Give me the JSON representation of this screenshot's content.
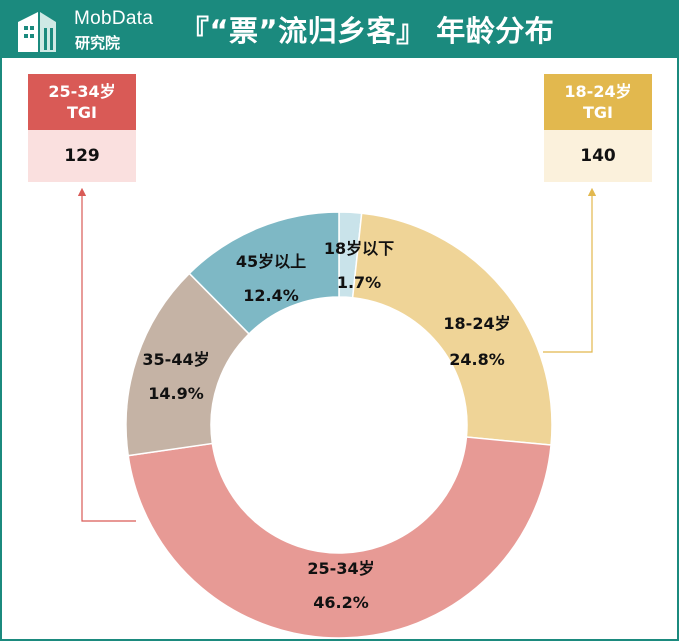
{
  "header": {
    "brand_name": "MobData",
    "brand_sub": "研究院",
    "title": "『“票”流归乡客』 年龄分布",
    "bg_color": "#1b8a7e"
  },
  "tgi_cards": [
    {
      "title_line1": "25-34岁",
      "title_line2": "TGI",
      "value": "129",
      "color": "#d95a56"
    },
    {
      "title_line1": "18-24岁",
      "title_line2": "TGI",
      "value": "140",
      "color": "#e2b84e"
    }
  ],
  "chart_data": {
    "type": "pie",
    "donut": true,
    "categories": [
      "18岁以下",
      "18-24岁",
      "25-34岁",
      "35-44岁",
      "45岁以上"
    ],
    "values": [
      1.7,
      24.8,
      46.2,
      14.9,
      12.4
    ],
    "value_labels": [
      "1.7%",
      "24.8%",
      "46.2%",
      "14.9%",
      "12.4%"
    ],
    "colors": [
      "#c9e3ea",
      "#efd497",
      "#e79a95",
      "#c5b3a5",
      "#7eb8c5"
    ],
    "start_angle_deg": 0,
    "direction": "clockwise"
  }
}
